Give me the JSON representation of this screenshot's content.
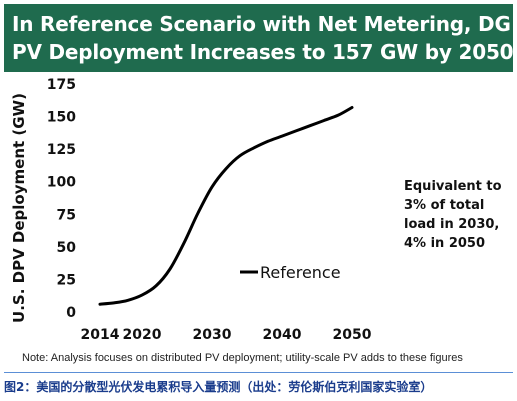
{
  "title": {
    "line1": "In Reference Scenario with Net Metering, DG",
    "line2": "PV Deployment Increases to 157 GW by 2050"
  },
  "note": "Note: Analysis focuses on distributed PV deployment; utility-scale PV adds to these figures",
  "caption": "图2：美国的分散型光伏发电累积导入量预测（出处：劳伦斯伯克利国家实验室）",
  "annotation": [
    "Equivalent to",
    "3% of total",
    "load in 2030,",
    "4% in 2050"
  ],
  "colors": {
    "title_bg": "#1f6b4e",
    "title_text": "#ffffff",
    "line": "#000000",
    "caption_text": "#1a3c8c",
    "caption_rule": "#5b8fd6"
  },
  "chart_data": {
    "type": "line",
    "title": "In Reference Scenario with Net Metering, DG PV Deployment Increases to 157 GW by 2050",
    "xlabel": "",
    "ylabel": "U.S. DPV Deployment (GW)",
    "xlim": [
      2014,
      2050
    ],
    "ylim": [
      0,
      175
    ],
    "xticks": [
      2014,
      2020,
      2030,
      2040,
      2050
    ],
    "xtick_labels": [
      "2014",
      "2020",
      "2030",
      "2040",
      "2050"
    ],
    "yticks": [
      0,
      25,
      50,
      75,
      100,
      125,
      150,
      175
    ],
    "ytick_labels": [
      "0",
      "25",
      "50",
      "75",
      "100",
      "125",
      "150",
      "175"
    ],
    "grid": false,
    "legend_position": "center-right",
    "series": [
      {
        "name": "Reference",
        "x": [
          2014,
          2016,
          2018,
          2020,
          2022,
          2024,
          2026,
          2028,
          2030,
          2032,
          2034,
          2036,
          2038,
          2040,
          2042,
          2044,
          2046,
          2048,
          2050
        ],
        "y": [
          6,
          7,
          9,
          13,
          20,
          33,
          53,
          76,
          96,
          110,
          120,
          126,
          131,
          135,
          139,
          143,
          147,
          151,
          157
        ]
      }
    ]
  }
}
